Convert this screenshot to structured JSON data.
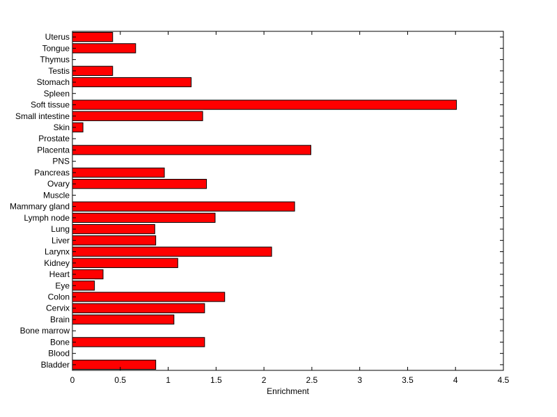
{
  "chart_data": {
    "type": "bar",
    "orientation": "horizontal",
    "title": "",
    "xlabel": "Enrichment",
    "ylabel": "",
    "xlim": [
      0,
      4.5
    ],
    "xticks": [
      0,
      0.5,
      1,
      1.5,
      2,
      2.5,
      3,
      3.5,
      4,
      4.5
    ],
    "xtick_labels": [
      "0",
      "0.5",
      "1",
      "1.5",
      "2",
      "2.5",
      "3",
      "3.5",
      "4",
      "4.5"
    ],
    "grid": false,
    "bar_color": "#ff0000",
    "bar_edge_color": "#000000",
    "categories": [
      "Bladder",
      "Blood",
      "Bone",
      "Bone marrow",
      "Brain",
      "Cervix",
      "Colon",
      "Eye",
      "Heart",
      "Kidney",
      "Larynx",
      "Liver",
      "Lung",
      "Lymph node",
      "Mammary gland",
      "Muscle",
      "Ovary",
      "Pancreas",
      "PNS",
      "Placenta",
      "Prostate",
      "Skin",
      "Small intestine",
      "Soft tissue",
      "Spleen",
      "Stomach",
      "Testis",
      "Thymus",
      "Tongue",
      "Uterus"
    ],
    "values": [
      0.87,
      0,
      1.38,
      0,
      1.06,
      1.38,
      1.59,
      0.23,
      0.32,
      1.1,
      2.08,
      0.87,
      0.86,
      1.49,
      2.32,
      0,
      1.4,
      0.96,
      0,
      2.49,
      0,
      0.11,
      1.36,
      4.01,
      0,
      1.24,
      0.42,
      0,
      0.66,
      0.42
    ]
  }
}
